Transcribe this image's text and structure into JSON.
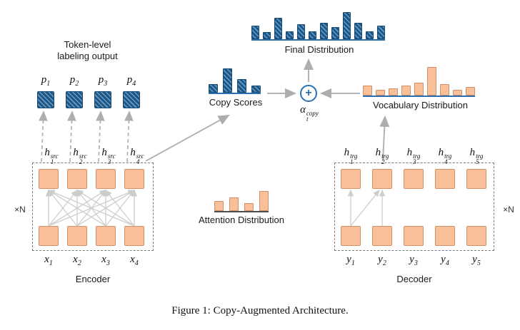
{
  "caption": "Figure 1: Copy-Augmented Architecture.",
  "top": {
    "token_label_line1": "Token-level",
    "token_label_line2": "labeling output",
    "outputs": [
      {
        "base": "p",
        "sub": "1"
      },
      {
        "base": "p",
        "sub": "2"
      },
      {
        "base": "p",
        "sub": "3"
      },
      {
        "base": "p",
        "sub": "4"
      }
    ],
    "plus": "+",
    "alpha": {
      "base": "α",
      "sub": "t",
      "sup": "copy"
    }
  },
  "encoder": {
    "name": "Encoder",
    "scale": "×N",
    "hidden": [
      {
        "base": "h",
        "sub": "1",
        "sup": "src"
      },
      {
        "base": "h",
        "sub": "2",
        "sup": "src"
      },
      {
        "base": "h",
        "sub": "3",
        "sup": "src"
      },
      {
        "base": "h",
        "sub": "4",
        "sup": "src"
      }
    ],
    "inputs": [
      {
        "base": "x",
        "sub": "1"
      },
      {
        "base": "x",
        "sub": "2"
      },
      {
        "base": "x",
        "sub": "3"
      },
      {
        "base": "x",
        "sub": "4"
      }
    ]
  },
  "decoder": {
    "name": "Decoder",
    "scale": "×N",
    "hidden": [
      {
        "base": "h",
        "sub": "1",
        "sup": "trg"
      },
      {
        "base": "h",
        "sub": "2",
        "sup": "trg"
      },
      {
        "base": "h",
        "sub": "3",
        "sup": "trg"
      },
      {
        "base": "h",
        "sub": "4",
        "sup": "trg"
      },
      {
        "base": "h",
        "sub": "5",
        "sup": "trg"
      }
    ],
    "inputs": [
      {
        "base": "y",
        "sub": "1"
      },
      {
        "base": "y",
        "sub": "2"
      },
      {
        "base": "y",
        "sub": "3"
      },
      {
        "base": "y",
        "sub": "4"
      },
      {
        "base": "y",
        "sub": "5"
      }
    ]
  },
  "colors": {
    "hatched_blue": "#1b5788",
    "orange": "#f9c09a",
    "baseline_blue": "#2a6fae",
    "baseline_dark": "#4d4d4d",
    "arrow_gray": "#b3b3b3"
  },
  "chart_data": [
    {
      "id": "final_distribution",
      "type": "bar",
      "title": "Final Distribution",
      "values": [
        0.5,
        0.25,
        0.8,
        0.3,
        0.55,
        0.3,
        0.6,
        0.45,
        1.0,
        0.6,
        0.3,
        0.5
      ],
      "style": "hatched-blue",
      "ylim": [
        0,
        1
      ],
      "baseline": "blue",
      "grid": false
    },
    {
      "id": "copy_scores",
      "type": "bar",
      "title": "Copy Scores",
      "values": [
        0.35,
        1.0,
        0.55,
        0.3
      ],
      "style": "hatched-blue",
      "ylim": [
        0,
        1
      ],
      "baseline": "blue",
      "grid": false
    },
    {
      "id": "vocabulary_distribution",
      "type": "bar",
      "title": "Vocabulary Distribution",
      "values": [
        0.35,
        0.2,
        0.25,
        0.35,
        0.45,
        1.0,
        0.4,
        0.2,
        0.3
      ],
      "style": "orange",
      "ylim": [
        0,
        1
      ],
      "baseline": "blue",
      "grid": false
    },
    {
      "id": "attention_distribution",
      "type": "bar",
      "title": "Attention Distribution",
      "values": [
        0.5,
        0.68,
        0.38,
        1.0
      ],
      "style": "orange",
      "ylim": [
        0,
        1
      ],
      "baseline": "dark",
      "grid": false
    }
  ]
}
